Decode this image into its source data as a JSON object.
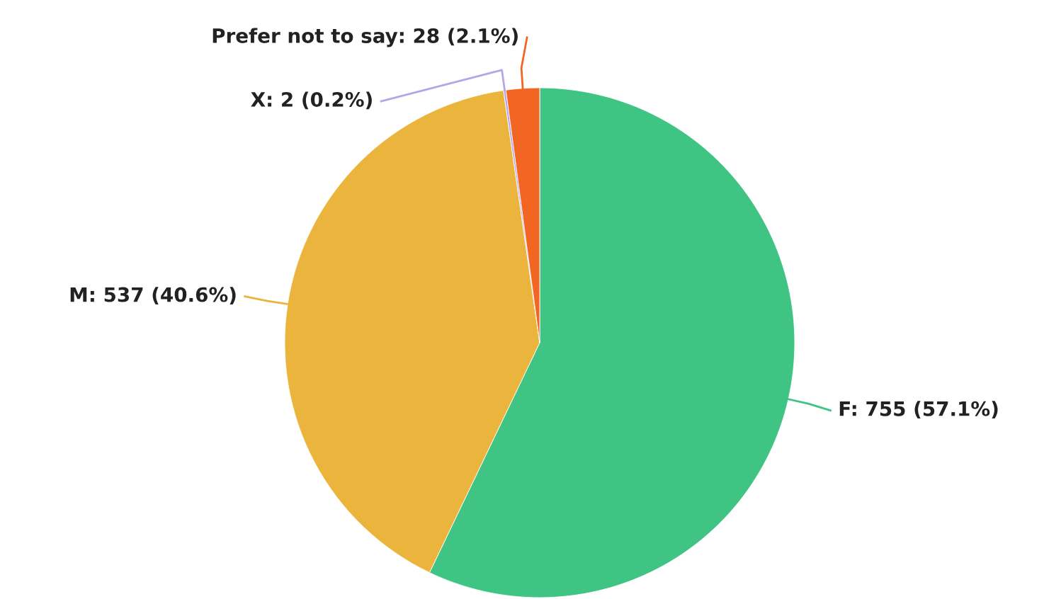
{
  "chart_data": {
    "type": "pie",
    "categories": [
      "F",
      "M",
      "X",
      "Prefer not to say"
    ],
    "values": [
      755,
      537,
      2,
      28
    ],
    "colors": [
      "#40c484",
      "#ebb43c",
      "#b6a6e8",
      "#f26522"
    ],
    "value_labels": [
      "755 (57.1%)",
      "537 (40.6%)",
      "2 (0.2%)",
      "28 (2.1%)"
    ],
    "legend": false
  }
}
